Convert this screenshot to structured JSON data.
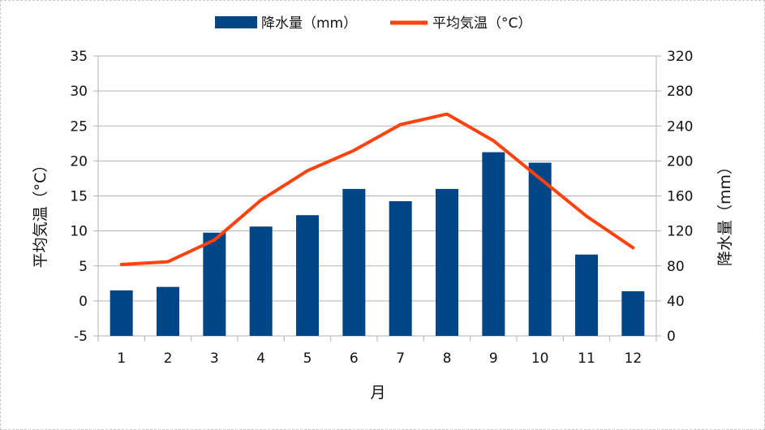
{
  "chart_data": {
    "type": "bar+line",
    "categories": [
      "1",
      "2",
      "3",
      "4",
      "5",
      "6",
      "7",
      "8",
      "9",
      "10",
      "11",
      "12"
    ],
    "series": [
      {
        "name": "降水量（mm）",
        "kind": "bar",
        "axis": "right",
        "color": "#004586",
        "values": [
          52,
          56,
          118,
          125,
          138,
          168,
          154,
          168,
          210,
          198,
          93,
          51
        ]
      },
      {
        "name": "平均気温（°C）",
        "kind": "line",
        "axis": "left",
        "color": "#ff420e",
        "values": [
          5.2,
          5.6,
          8.7,
          14.4,
          18.6,
          21.5,
          25.2,
          26.7,
          22.9,
          17.5,
          12.1,
          7.6
        ]
      }
    ],
    "xlabel": "月",
    "ylabel_left": "平均気温（°C）",
    "ylabel_right": "降水量（mm）",
    "ylim_left": [
      -5,
      35
    ],
    "ylim_right": [
      0,
      320
    ],
    "yticks_left": [
      "35",
      "30",
      "25",
      "20",
      "15",
      "10",
      "5",
      "0",
      "-5"
    ],
    "yticks_right": [
      "320",
      "280",
      "240",
      "200",
      "160",
      "120",
      "80",
      "40",
      "0"
    ],
    "grid": true,
    "legend": "top-center"
  }
}
